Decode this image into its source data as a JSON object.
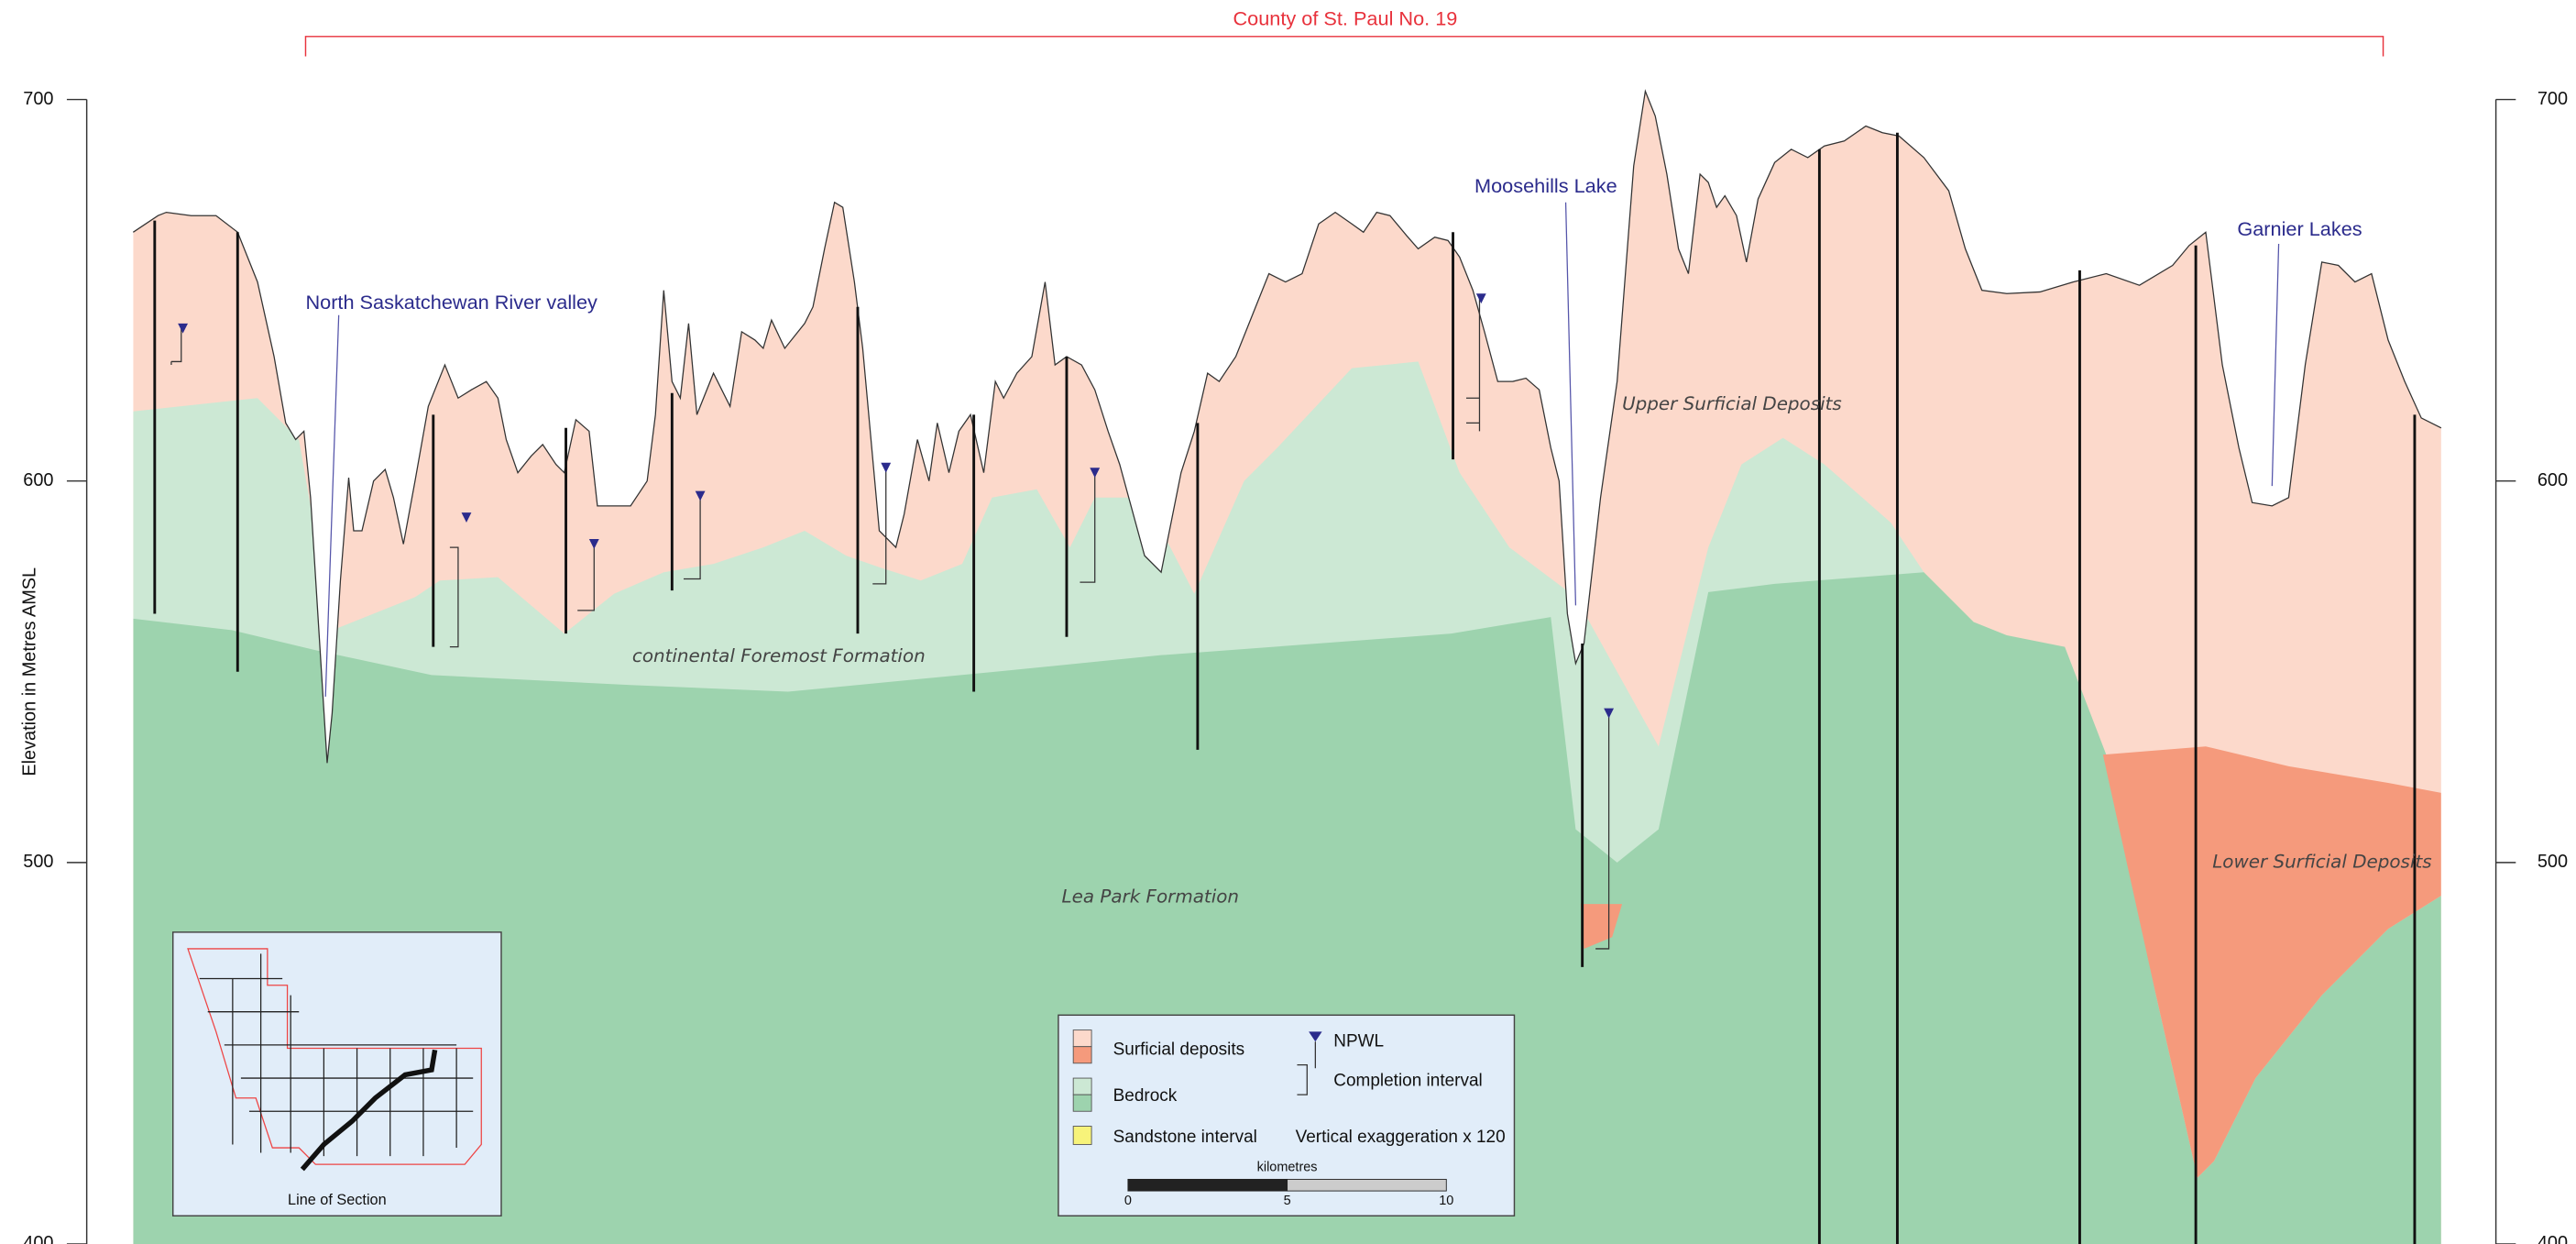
{
  "title": "County of St. Paul No. 19",
  "y_axis": {
    "label": "Elevation in Metres AMSL",
    "ylim": [
      400,
      700
    ],
    "yticks": [
      400,
      500,
      600,
      700
    ]
  },
  "annotations": {
    "river": "North Saskatchewan River valley",
    "moosehills": "Moosehills Lake",
    "garnier": "Garnier Lakes"
  },
  "units": {
    "upper": "Upper Surficial Deposits",
    "foremost": "continental Foremost Formation",
    "leapark": "Lea Park Formation",
    "lower": "Lower Surficial Deposits"
  },
  "legend": {
    "surficial": "Surficial deposits",
    "bedrock": "Bedrock",
    "sandstone": "Sandstone interval",
    "npwl": "NPWL",
    "completion": "Completion interval",
    "exaggeration": "Vertical exaggeration x 120"
  },
  "scale_bar": {
    "label": "kilometres",
    "xlim": [
      0,
      10
    ],
    "ticks": [
      0,
      5,
      10
    ]
  },
  "inset": {
    "caption": "Line of Section"
  }
}
